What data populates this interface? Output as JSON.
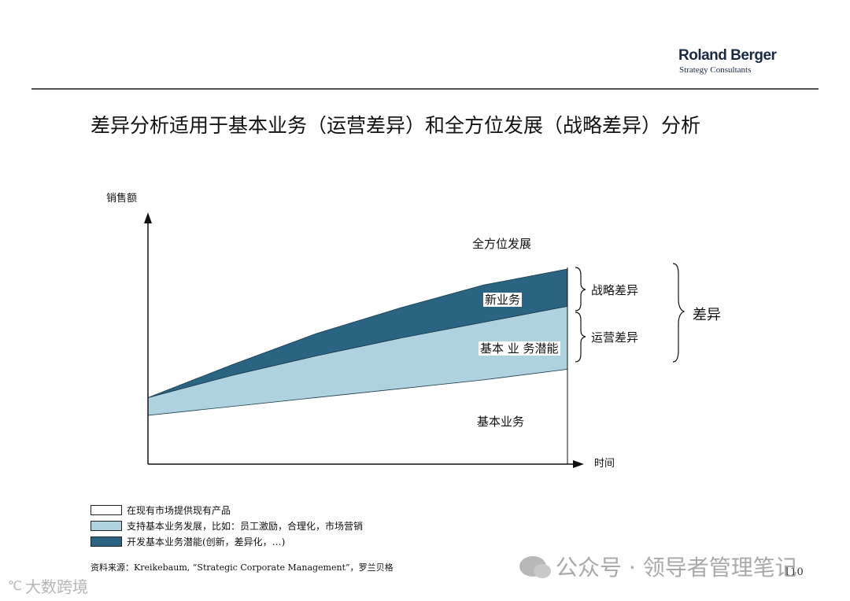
{
  "header": {
    "logo_main": "Roland Berger",
    "logo_sub": "Strategy Consultants"
  },
  "title": "差异分析适用于基本业务（运营差异）和全方位发展（战略差异）分析",
  "chart_data": {
    "type": "area",
    "ylabel": "销售额",
    "xlabel": "时间",
    "x": [
      0,
      1,
      2,
      3,
      4,
      5
    ],
    "series": [
      {
        "name": "在现有市场提供现有产品",
        "color": "#ffffff",
        "lower": [
          0,
          0,
          0,
          0,
          0,
          0
        ],
        "upper": [
          0.55,
          0.65,
          0.75,
          0.85,
          0.95,
          1.07
        ]
      },
      {
        "name": "支持基本业务发展，比如：员工激励，合理化，市场营销",
        "color": "#aed2df",
        "lower": [
          0.55,
          0.65,
          0.75,
          0.85,
          0.95,
          1.07
        ],
        "upper": [
          0.75,
          1.0,
          1.22,
          1.42,
          1.6,
          1.78
        ]
      },
      {
        "name": "开发基本业务潜能(创新，差异化，…)",
        "color": "#2a6482",
        "lower": [
          0.75,
          1.0,
          1.22,
          1.42,
          1.6,
          1.78
        ],
        "upper": [
          0.75,
          1.12,
          1.47,
          1.76,
          2.02,
          2.2
        ]
      }
    ],
    "xlim": [
      0,
      5
    ],
    "ylim": [
      0,
      2.75
    ],
    "annotations": {
      "full_dev": "全方位发展",
      "new_business": "新业务",
      "potential": "基本 业 务潜能",
      "base": "基本业务",
      "strategic_gap": "战略差异",
      "operational_gap": "运营差异",
      "gap": "差异"
    },
    "legend_position": "bottom-left"
  },
  "legend": [
    {
      "label": "在现有市场提供现有产品",
      "color": "#ffffff"
    },
    {
      "label": "支持基本业务发展，比如：员工激励，合理化，市场营销",
      "color": "#aed2df"
    },
    {
      "label": "开发基本业务潜能(创新，差异化，…)",
      "color": "#2a6482"
    }
  ],
  "source": "资料来源：Kreikebaum, “Strategic Corporate Management”，罗兰贝格",
  "watermark": "公众号 · 领导者管理笔记",
  "corner_mark": "大数跨境",
  "page_number": "110"
}
